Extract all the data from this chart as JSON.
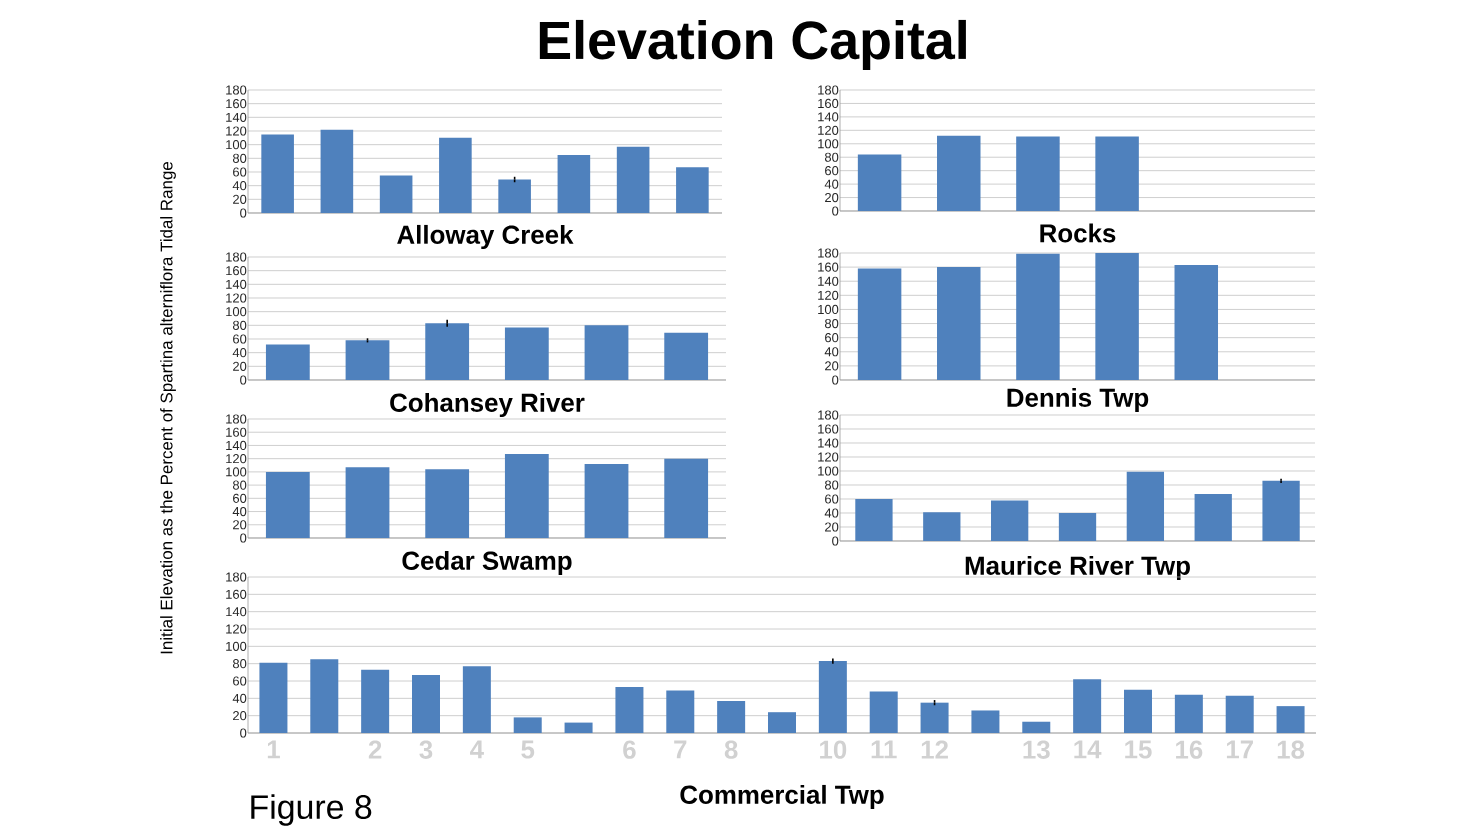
{
  "chart_data": [
    {
      "type": "bar",
      "title": "Alloway Creek",
      "categories": [
        null,
        null,
        null,
        null,
        null,
        null,
        null,
        null
      ],
      "values": [
        115,
        122,
        55,
        110,
        49,
        85,
        97,
        67
      ],
      "errors": [
        null,
        null,
        null,
        null,
        4,
        null,
        null,
        null
      ],
      "color": "#4f81bd",
      "ylim": [
        0,
        180
      ],
      "yticks": [
        0,
        20,
        40,
        60,
        80,
        100,
        120,
        140,
        160,
        180
      ],
      "grid": "y",
      "tick_labels": "y"
    },
    {
      "type": "bar",
      "title": "Rocks",
      "categories": [
        null,
        null,
        null,
        null,
        null,
        null
      ],
      "values": [
        84,
        112,
        111,
        111,
        null,
        null
      ],
      "color": "#4f81bd",
      "ylim": [
        0,
        180
      ],
      "yticks": [
        0,
        20,
        40,
        60,
        80,
        100,
        120,
        140,
        160,
        180
      ],
      "grid": "y",
      "tick_labels": "y"
    },
    {
      "type": "bar",
      "title": "Cohansey River",
      "categories": [
        null,
        null,
        null,
        null,
        null,
        null
      ],
      "values": [
        52,
        58,
        83,
        77,
        80,
        69
      ],
      "errors": [
        null,
        3,
        5,
        null,
        null,
        null
      ],
      "color": "#4f81bd",
      "ylim": [
        0,
        180
      ],
      "yticks": [
        0,
        20,
        40,
        60,
        80,
        100,
        120,
        140,
        160,
        180
      ],
      "grid": "y",
      "tick_labels": "y"
    },
    {
      "type": "bar",
      "title": "Dennis Twp",
      "categories": [
        null,
        null,
        null,
        null,
        null,
        null
      ],
      "values": [
        158,
        160,
        179,
        180,
        163,
        null
      ],
      "color": "#4f81bd",
      "ylim": [
        0,
        180
      ],
      "yticks": [
        0,
        20,
        40,
        60,
        80,
        100,
        120,
        140,
        160,
        180
      ],
      "grid": "y",
      "tick_labels": "y"
    },
    {
      "type": "bar",
      "title": "Cedar Swamp",
      "categories": [
        null,
        null,
        null,
        null,
        null,
        null
      ],
      "values": [
        100,
        107,
        104,
        127,
        112,
        120
      ],
      "color": "#4f81bd",
      "ylim": [
        0,
        180
      ],
      "yticks": [
        0,
        20,
        40,
        60,
        80,
        100,
        120,
        140,
        160,
        180
      ],
      "grid": "y",
      "tick_labels": "y"
    },
    {
      "type": "bar",
      "title": "Maurice River Twp",
      "categories": [
        null,
        null,
        null,
        null,
        null,
        null,
        null
      ],
      "values": [
        60,
        41,
        58,
        40,
        99,
        67,
        86
      ],
      "errors": [
        null,
        null,
        null,
        null,
        null,
        null,
        3
      ],
      "color": "#4f81bd",
      "ylim": [
        0,
        180
      ],
      "yticks": [
        0,
        20,
        40,
        60,
        80,
        100,
        120,
        140,
        160,
        180
      ],
      "grid": "y",
      "tick_labels": "y"
    },
    {
      "type": "bar",
      "title": "Commercial Twp",
      "ylabel": "Initial Elevation as the Percent of Spartina alterniflora  Tidal Range",
      "annotations": [
        "Elevation Capital",
        "Figure 8"
      ],
      "categories": [
        "1",
        null,
        "2",
        "3",
        "4",
        "5",
        null,
        "6",
        "7",
        "8",
        null,
        "10",
        "11",
        "12",
        null,
        "13",
        "14",
        "15",
        "16",
        "17",
        "18"
      ],
      "values": [
        81,
        85,
        73,
        67,
        77,
        18,
        12,
        53,
        49,
        37,
        24,
        83,
        48,
        35,
        26,
        13,
        62,
        50,
        44,
        43,
        31
      ],
      "errors": [
        null,
        null,
        null,
        null,
        null,
        null,
        null,
        null,
        null,
        null,
        null,
        3,
        null,
        3,
        null,
        null,
        null,
        null,
        null,
        null,
        null
      ],
      "color": "#4f81bd",
      "ylim": [
        0,
        180
      ],
      "yticks": [
        0,
        20,
        40,
        60,
        80,
        100,
        120,
        140,
        160,
        180
      ],
      "grid": "y"
    }
  ]
}
